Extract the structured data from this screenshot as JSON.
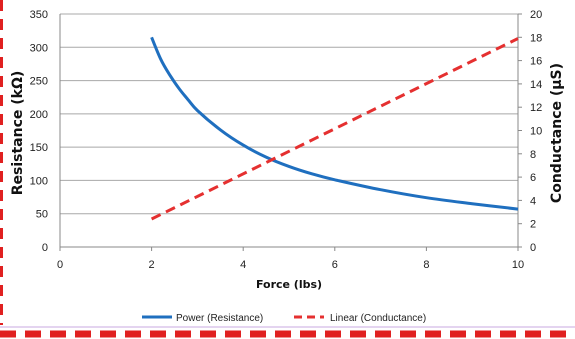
{
  "chart_data": {
    "type": "line",
    "xlabel": "Force (lbs)",
    "ylabel_left": "Resistance (kΩ)",
    "ylabel_right": "Conductance (µS)",
    "x_ticks": [
      0,
      2,
      4,
      6,
      8,
      10
    ],
    "y_left_ticks": [
      0,
      50,
      100,
      150,
      200,
      250,
      300,
      350
    ],
    "y_right_ticks": [
      0,
      2,
      4,
      6,
      8,
      10,
      12,
      14,
      16,
      18,
      20
    ],
    "xlim": [
      0,
      10
    ],
    "ylim_left": [
      0,
      350
    ],
    "ylim_right": [
      0,
      20
    ],
    "grid": true,
    "legend_position": "bottom",
    "series": [
      {
        "name": "Power (Resistance)",
        "axis": "left",
        "color": "#1f6fbf",
        "style": "solid",
        "x": [
          2.0,
          2.2,
          2.4,
          2.6,
          2.8,
          3.0,
          3.5,
          4.0,
          4.5,
          5.0,
          5.5,
          6.0,
          7.0,
          8.0,
          9.0,
          10.0
        ],
        "y": [
          315,
          282,
          258,
          238,
          221,
          205,
          176,
          153,
          135,
          121,
          110,
          101,
          86,
          74,
          65,
          57
        ]
      },
      {
        "name": "Linear (Conductance)",
        "axis": "right",
        "color": "#e53030",
        "style": "dashed",
        "x": [
          2.0,
          10.0
        ],
        "y": [
          2.4,
          17.9
        ]
      }
    ]
  }
}
